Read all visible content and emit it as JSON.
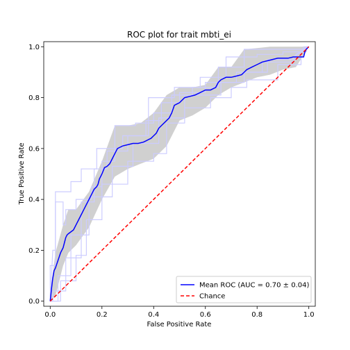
{
  "chart_data": {
    "type": "line",
    "title": "ROC plot for trait mbti_ei",
    "xlabel": "False Positive Rate",
    "ylabel": "True Positive Rate",
    "xlim": [
      -0.025,
      1.025
    ],
    "ylim": [
      -0.02,
      1.02
    ],
    "xticks": [
      0.0,
      0.2,
      0.4,
      0.6,
      0.8,
      1.0
    ],
    "xtick_labels": [
      "0.0",
      "0.2",
      "0.4",
      "0.6",
      "0.8",
      "1.0"
    ],
    "yticks": [
      0.0,
      0.2,
      0.4,
      0.6,
      0.8,
      1.0
    ],
    "ytick_labels": [
      "0.0",
      "0.2",
      "0.4",
      "0.6",
      "0.8",
      "1.0"
    ],
    "grid": false,
    "legend_position": "lower-right",
    "colors": {
      "mean": "#0000ff",
      "fold": "#ccccff",
      "band": "#c0c0c0",
      "chance": "#ff0000"
    },
    "series": [
      {
        "name": "Mean ROC (AUC = 0.70 ± 0.04)",
        "role": "mean",
        "x": [
          0.0,
          0.005,
          0.01,
          0.015,
          0.02,
          0.03,
          0.04,
          0.05,
          0.06,
          0.065,
          0.07,
          0.09,
          0.095,
          0.1,
          0.11,
          0.12,
          0.13,
          0.14,
          0.145,
          0.15,
          0.16,
          0.17,
          0.18,
          0.185,
          0.19,
          0.2,
          0.21,
          0.22,
          0.23,
          0.24,
          0.25,
          0.26,
          0.27,
          0.28,
          0.3,
          0.32,
          0.34,
          0.36,
          0.37,
          0.38,
          0.39,
          0.4,
          0.41,
          0.42,
          0.43,
          0.44,
          0.45,
          0.46,
          0.47,
          0.48,
          0.5,
          0.52,
          0.54,
          0.56,
          0.58,
          0.6,
          0.62,
          0.64,
          0.65,
          0.66,
          0.68,
          0.7,
          0.72,
          0.74,
          0.75,
          0.76,
          0.78,
          0.8,
          0.82,
          0.84,
          0.86,
          0.88,
          0.9,
          0.92,
          0.94,
          0.96,
          0.98,
          0.985,
          0.99,
          1.0
        ],
        "y": [
          0.0,
          0.05,
          0.09,
          0.12,
          0.13,
          0.16,
          0.19,
          0.21,
          0.25,
          0.26,
          0.265,
          0.28,
          0.29,
          0.3,
          0.32,
          0.34,
          0.36,
          0.38,
          0.39,
          0.4,
          0.42,
          0.44,
          0.45,
          0.46,
          0.48,
          0.5,
          0.525,
          0.53,
          0.54,
          0.56,
          0.58,
          0.6,
          0.605,
          0.61,
          0.615,
          0.62,
          0.62,
          0.625,
          0.63,
          0.635,
          0.64,
          0.65,
          0.66,
          0.68,
          0.69,
          0.7,
          0.71,
          0.72,
          0.74,
          0.77,
          0.78,
          0.8,
          0.805,
          0.81,
          0.82,
          0.83,
          0.83,
          0.84,
          0.86,
          0.87,
          0.88,
          0.88,
          0.885,
          0.89,
          0.9,
          0.91,
          0.92,
          0.93,
          0.94,
          0.945,
          0.95,
          0.955,
          0.955,
          0.955,
          0.96,
          0.96,
          0.96,
          0.98,
          0.99,
          1.0
        ]
      },
      {
        "name": "Chance",
        "role": "chance",
        "x": [
          0.0,
          1.0
        ],
        "y": [
          0.0,
          1.0
        ]
      }
    ],
    "band": {
      "x": [
        0.0,
        0.02,
        0.05,
        0.07,
        0.1,
        0.15,
        0.2,
        0.25,
        0.3,
        0.35,
        0.4,
        0.45,
        0.5,
        0.55,
        0.6,
        0.65,
        0.7,
        0.75,
        0.8,
        0.85,
        0.9,
        0.95,
        1.0
      ],
      "upper": [
        0.03,
        0.19,
        0.3,
        0.36,
        0.36,
        0.43,
        0.55,
        0.69,
        0.69,
        0.7,
        0.74,
        0.81,
        0.84,
        0.84,
        0.85,
        0.92,
        0.92,
        0.99,
        0.995,
        1.0,
        1.0,
        1.0,
        1.0
      ],
      "lower": [
        0.0,
        0.02,
        0.14,
        0.19,
        0.22,
        0.29,
        0.4,
        0.49,
        0.52,
        0.54,
        0.56,
        0.61,
        0.71,
        0.73,
        0.76,
        0.81,
        0.84,
        0.86,
        0.88,
        0.89,
        0.91,
        0.92,
        1.0
      ]
    },
    "folds": [
      {
        "x": [
          0,
          0.01,
          0.02,
          0.02,
          0.05,
          0.05,
          0.06,
          0.06,
          0.1,
          0.1,
          0.16,
          0.16,
          0.2,
          0.2,
          0.25,
          0.25,
          0.33,
          0.33,
          0.4,
          0.4,
          0.47,
          0.47,
          0.55,
          0.55,
          0.65,
          0.65,
          0.75,
          0.75,
          0.85,
          0.85,
          0.98,
          0.98,
          1.0
        ],
        "y": [
          0,
          0.2,
          0.2,
          0.39,
          0.39,
          0.3,
          0.3,
          0.36,
          0.36,
          0.4,
          0.4,
          0.45,
          0.45,
          0.55,
          0.55,
          0.69,
          0.69,
          0.7,
          0.7,
          0.74,
          0.74,
          0.81,
          0.81,
          0.84,
          0.84,
          0.92,
          0.92,
          0.99,
          0.99,
          0.99,
          0.99,
          1.0,
          1.0
        ]
      },
      {
        "x": [
          0,
          0.0,
          0.02,
          0.02,
          0.08,
          0.08,
          0.12,
          0.12,
          0.18,
          0.18,
          0.28,
          0.28,
          0.38,
          0.38,
          0.48,
          0.48,
          0.58,
          0.58,
          0.68,
          0.68,
          0.8,
          0.8,
          0.9,
          0.9,
          0.99,
          0.99,
          1.0
        ],
        "y": [
          0,
          0.14,
          0.14,
          0.43,
          0.43,
          0.47,
          0.47,
          0.52,
          0.52,
          0.6,
          0.6,
          0.65,
          0.65,
          0.8,
          0.8,
          0.84,
          0.84,
          0.88,
          0.88,
          0.96,
          0.96,
          0.97,
          0.97,
          0.98,
          0.98,
          1.0,
          1.0
        ]
      },
      {
        "x": [
          0,
          0.04,
          0.04,
          0.1,
          0.1,
          0.14,
          0.14,
          0.2,
          0.2,
          0.3,
          0.3,
          0.4,
          0.4,
          0.45,
          0.45,
          0.52,
          0.52,
          0.62,
          0.62,
          0.7,
          0.7,
          0.76,
          0.76,
          0.88,
          0.88,
          0.97,
          0.97,
          1.0
        ],
        "y": [
          0,
          0.0,
          0.08,
          0.08,
          0.18,
          0.18,
          0.32,
          0.32,
          0.46,
          0.46,
          0.55,
          0.55,
          0.58,
          0.58,
          0.7,
          0.7,
          0.76,
          0.76,
          0.8,
          0.8,
          0.84,
          0.84,
          0.87,
          0.87,
          0.93,
          0.93,
          0.99,
          1.0
        ]
      },
      {
        "x": [
          0,
          0.01,
          0.01,
          0.06,
          0.06,
          0.12,
          0.12,
          0.17,
          0.17,
          0.22,
          0.22,
          0.3,
          0.3,
          0.37,
          0.37,
          0.43,
          0.43,
          0.5,
          0.5,
          0.6,
          0.6,
          0.72,
          0.72,
          0.82,
          0.82,
          0.94,
          0.94,
          1.0
        ],
        "y": [
          0,
          0.0,
          0.04,
          0.04,
          0.17,
          0.17,
          0.39,
          0.39,
          0.52,
          0.52,
          0.59,
          0.59,
          0.65,
          0.65,
          0.71,
          0.71,
          0.78,
          0.78,
          0.82,
          0.82,
          0.86,
          0.86,
          0.9,
          0.9,
          0.94,
          0.94,
          0.96,
          1.0
        ]
      },
      {
        "x": [
          0,
          0.03,
          0.03,
          0.08,
          0.08,
          0.15,
          0.15,
          0.24,
          0.24,
          0.32,
          0.32,
          0.42,
          0.42,
          0.52,
          0.52,
          0.66,
          0.66,
          0.75,
          0.75,
          0.84,
          0.84,
          0.95,
          0.95,
          1.0
        ],
        "y": [
          0,
          0.0,
          0.1,
          0.1,
          0.26,
          0.26,
          0.41,
          0.41,
          0.53,
          0.53,
          0.62,
          0.62,
          0.72,
          0.72,
          0.81,
          0.81,
          0.86,
          0.86,
          0.9,
          0.9,
          0.95,
          0.95,
          0.97,
          1.0
        ]
      }
    ]
  }
}
